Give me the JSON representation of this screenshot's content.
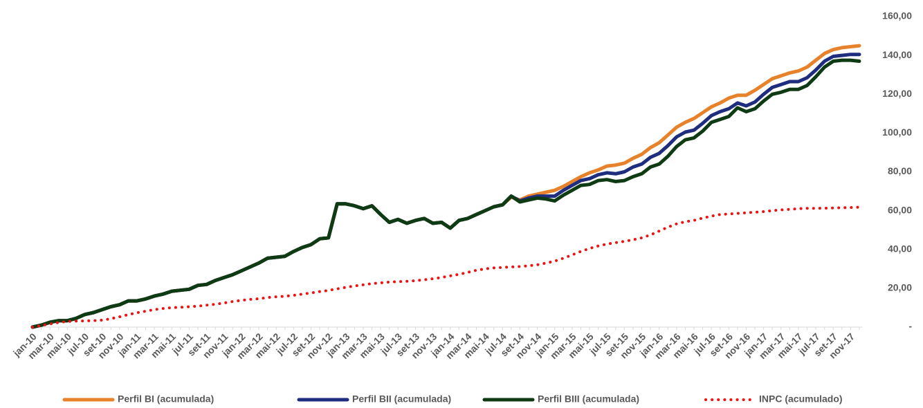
{
  "chart_data": {
    "type": "line",
    "categories": [
      "jan-10",
      null,
      "mar-10",
      null,
      "mai-10",
      null,
      "jul-10",
      null,
      "set-10",
      null,
      "nov-10",
      null,
      "jan-11",
      null,
      "mar-11",
      null,
      "mai-11",
      null,
      "jul-11",
      null,
      "set-11",
      null,
      "nov-11",
      null,
      "jan-12",
      null,
      "mar-12",
      null,
      "mai-12",
      null,
      "jul-12",
      null,
      "set-12",
      null,
      "nov-12",
      null,
      "jan-13",
      null,
      "mar-13",
      null,
      "mai-13",
      null,
      "jul-13",
      null,
      "set-13",
      null,
      "nov-13",
      null,
      "jan-14",
      null,
      "mar-14",
      null,
      "mai-14",
      null,
      "jul-14",
      null,
      "set-14",
      null,
      "nov-14",
      null,
      "jan-15",
      null,
      "mar-15",
      null,
      "mai-15",
      null,
      "jul-15",
      null,
      "set-15",
      null,
      "nov-15",
      null,
      "jan-16",
      null,
      "mar-16",
      null,
      "mai-16",
      null,
      "jul-16",
      null,
      "set-16",
      null,
      "nov-16",
      null,
      "jan-17",
      null,
      "mar-17",
      null,
      "mai-17",
      null,
      "jul-17",
      null,
      "set-17",
      null,
      "nov-17",
      null
    ],
    "ylim": [
      0,
      160
    ],
    "yticks": [
      {
        "value": 0,
        "label": "-"
      },
      {
        "value": 20,
        "label": "20,00"
      },
      {
        "value": 40,
        "label": "40,00"
      },
      {
        "value": 60,
        "label": "60,00"
      },
      {
        "value": 80,
        "label": "80,00"
      },
      {
        "value": 100,
        "label": "100,00"
      },
      {
        "value": 120,
        "label": "120,00"
      },
      {
        "value": 140,
        "label": "140,00"
      },
      {
        "value": 160,
        "label": "160,00"
      }
    ],
    "y_axis_side": "right",
    "legend": "bottom",
    "series": [
      {
        "name": "Perfil BI (acumulada)",
        "color": "#e8822a",
        "dash": false,
        "values": [
          0,
          1,
          2.5,
          3.3,
          3.3,
          4.5,
          6.5,
          7.5,
          9,
          10.5,
          11.5,
          13.5,
          13.5,
          14.5,
          16,
          17,
          18.5,
          19,
          19.5,
          21.5,
          22,
          24,
          25.5,
          27,
          29,
          31,
          33,
          35.5,
          36,
          36.5,
          39,
          41,
          42.5,
          45.5,
          46,
          63.5,
          63.5,
          62.5,
          61,
          62.5,
          58,
          54,
          55.5,
          53.5,
          55,
          56,
          53.5,
          54,
          51,
          55,
          56,
          58,
          60,
          62,
          63,
          67,
          65.5,
          67.5,
          68.5,
          69.5,
          70.5,
          72.5,
          75,
          77.5,
          79.5,
          81,
          83,
          83.5,
          84.5,
          87,
          89,
          92.5,
          95,
          99,
          103,
          105.5,
          107.5,
          110.5,
          113.5,
          115.5,
          118,
          119.5,
          119.5,
          122,
          125,
          128,
          129.5,
          131,
          132,
          134,
          137.5,
          141,
          143,
          144,
          144.5,
          145
        ]
      },
      {
        "name": "Perfil BII (acumulada)",
        "color": "#1f2d7f",
        "dash": false,
        "values": [
          0,
          1,
          2.5,
          3.3,
          3.3,
          4.5,
          6.5,
          7.5,
          9,
          10.5,
          11.5,
          13.5,
          13.5,
          14.5,
          16,
          17,
          18.5,
          19,
          19.5,
          21.5,
          22,
          24,
          25.5,
          27,
          29,
          31,
          33,
          35.5,
          36,
          36.5,
          39,
          41,
          42.5,
          45.5,
          46,
          63.5,
          63.5,
          62.5,
          61,
          62.5,
          58,
          54,
          55.5,
          53.5,
          55,
          56,
          53.5,
          54,
          51,
          55,
          56,
          58,
          60,
          62,
          63,
          67.5,
          65,
          66.5,
          67.5,
          67.5,
          67.5,
          70.5,
          73,
          75.5,
          76.5,
          78.5,
          79.5,
          79,
          80,
          82.5,
          84,
          87.5,
          89.5,
          93.5,
          98,
          100.5,
          101.5,
          105,
          109,
          111,
          112.5,
          115.5,
          114,
          116,
          120,
          123.5,
          125,
          126.5,
          126.5,
          128.5,
          132.5,
          137,
          139.5,
          140,
          140.5,
          140.5
        ]
      },
      {
        "name": "Perfil BIII (acumulada)",
        "color": "#0e3b14",
        "dash": false,
        "values": [
          0,
          1,
          2.5,
          3.3,
          3.3,
          4.5,
          6.5,
          7.5,
          9,
          10.5,
          11.5,
          13.5,
          13.5,
          14.5,
          16,
          17,
          18.5,
          19,
          19.5,
          21.5,
          22,
          24,
          25.5,
          27,
          29,
          31,
          33,
          35.5,
          36,
          36.5,
          39,
          41,
          42.5,
          45.5,
          46,
          63.5,
          63.5,
          62.5,
          61,
          62.5,
          58,
          54,
          55.5,
          53.5,
          55,
          56,
          53.5,
          54,
          51,
          55,
          56,
          58,
          60,
          62,
          63,
          67.5,
          64.5,
          65.5,
          66.5,
          66,
          65,
          68,
          70.5,
          73,
          73.5,
          75.5,
          76,
          75,
          75.5,
          77.5,
          79,
          82.5,
          84,
          88,
          93,
          96.5,
          97.5,
          101,
          105.5,
          107,
          108.5,
          113,
          111,
          112.5,
          116.5,
          120,
          121,
          122.5,
          122.5,
          124.5,
          129,
          134,
          137,
          137.5,
          137.5,
          137
        ]
      },
      {
        "name": "INPC (acumulado)",
        "color": "#ee1111",
        "dash": true,
        "values": [
          0,
          0.8,
          1.6,
          2.4,
          2.9,
          3.1,
          3.2,
          3.3,
          3.6,
          4.3,
          5.3,
          6.4,
          7.4,
          8.2,
          9,
          9.6,
          10,
          10.2,
          10.5,
          10.8,
          11.3,
          11.8,
          12.4,
          13.2,
          13.8,
          14.3,
          14.6,
          15.2,
          15.6,
          15.9,
          16.4,
          17,
          17.6,
          18.3,
          18.9,
          19.7,
          20.5,
          21.2,
          21.8,
          22.4,
          22.8,
          23.2,
          23.4,
          23.6,
          23.9,
          24.4,
          24.9,
          25.6,
          26.4,
          27.2,
          28.2,
          29.3,
          30,
          30.5,
          30.7,
          31,
          31.2,
          31.6,
          32.1,
          33,
          34,
          35.5,
          37.2,
          39,
          40.5,
          41.8,
          42.8,
          43.5,
          44.2,
          45,
          46,
          47.5,
          49.5,
          51.5,
          53.2,
          54.3,
          55,
          56.2,
          57.2,
          58,
          58.3,
          58.6,
          58.9,
          59.2,
          59.5,
          60,
          60.4,
          60.7,
          61,
          61.2,
          61.2,
          61.3,
          61.4,
          61.5,
          61.6,
          61.8
        ]
      }
    ]
  }
}
